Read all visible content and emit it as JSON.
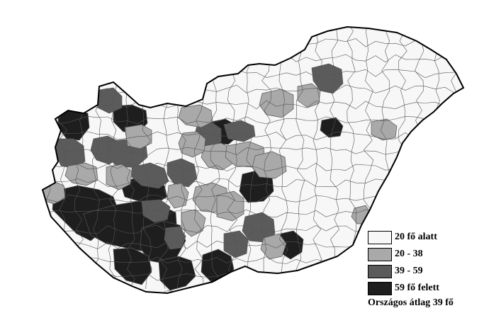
{
  "map": {
    "colors": {
      "class1": "#f7f7f7",
      "class2": "#a9a9a9",
      "class3": "#5b5b5b",
      "class4": "#1e1e1e",
      "border": "#000000",
      "inner_border": "#555555"
    }
  },
  "legend": {
    "items": [
      {
        "label": "20 fő alatt",
        "color": "#f7f7f7"
      },
      {
        "label": "20 - 38",
        "color": "#a9a9a9"
      },
      {
        "label": "39 - 59",
        "color": "#5b5b5b"
      },
      {
        "label": "59 fő felett",
        "color": "#1e1e1e"
      }
    ],
    "note": "Országos átlag 39 fő"
  }
}
